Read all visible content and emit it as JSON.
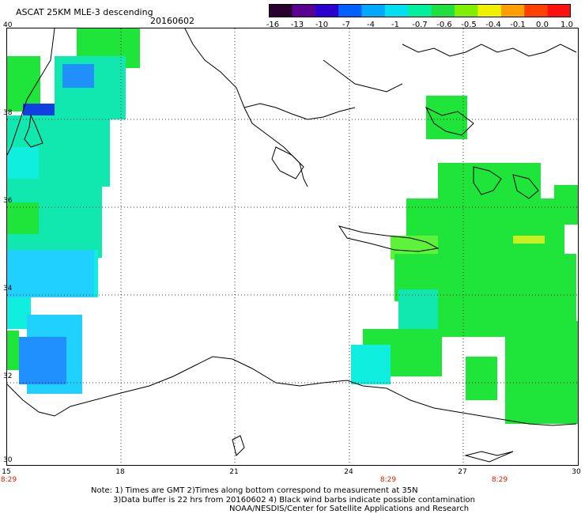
{
  "title": "ASCAT 25KM MLE-3 descending",
  "date": "20160602",
  "colorbar": {
    "labels": [
      "-16",
      "-13",
      "-10",
      "-7",
      "-4",
      "-1",
      "-0.7",
      "-0.6",
      "-0.5",
      "-0.4",
      "-0.1",
      "0.0",
      "1.0"
    ],
    "colors": [
      "#2a0030",
      "#5a0090",
      "#2a00d0",
      "#0060ff",
      "#00a8ff",
      "#00e0f0",
      "#00f0a0",
      "#20e040",
      "#80f000",
      "#f0f000",
      "#ffa000",
      "#ff4000",
      "#ff1010"
    ]
  },
  "latitude_labels": [
    "40",
    "38",
    "36",
    "34",
    "32",
    "30"
  ],
  "longitude_labels": [
    "15",
    "18",
    "21",
    "24",
    "27",
    "30"
  ],
  "time_labels": [
    "8:29",
    "8:29",
    "8:29"
  ],
  "notes": [
    "Note: 1) Times are GMT 2)Times along bottom correspond to measurement at 35N",
    "3)Data buffer is 22 hrs from 20160602 4) Black wind barbs indicate possible contamination",
    "NOAA/NESDIS/Center for Satellite Applications and Research"
  ],
  "data_colors": {
    "green": "#1fe43a",
    "lightgreen": "#5ef23a",
    "cyan": "#10eee0",
    "teal": "#10e8b0",
    "lightblue": "#20d0ff",
    "blue": "#2090ff",
    "darkblue": "#1040e0",
    "yellowgreen": "#c8f020"
  }
}
